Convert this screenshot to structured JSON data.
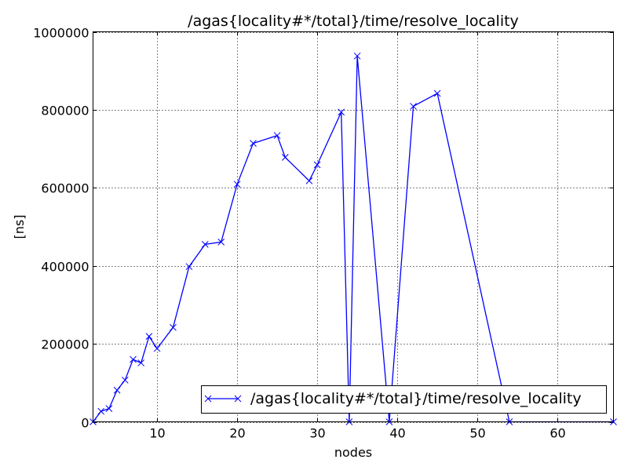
{
  "chart_data": {
    "type": "line",
    "title": "/agas{locality#*/total}/time/resolve_locality",
    "xlabel": "nodes",
    "ylabel": "[ns]",
    "xlim": [
      2,
      67
    ],
    "ylim": [
      0,
      1000000
    ],
    "x_ticks": [
      10,
      20,
      30,
      40,
      50,
      60
    ],
    "y_ticks": [
      0,
      200000,
      400000,
      600000,
      800000,
      1000000
    ],
    "grid": true,
    "legend_position": "lower-right",
    "series": [
      {
        "name": "/agas{locality#*/total}/time/resolve_locality",
        "color": "#0000ff",
        "marker": "x",
        "x": [
          2,
          3,
          4,
          5,
          6,
          7,
          8,
          9,
          10,
          12,
          14,
          16,
          18,
          20,
          22,
          25,
          26,
          29,
          30,
          33,
          34,
          35,
          39,
          42,
          45,
          54,
          67
        ],
        "y": [
          0,
          27000,
          34000,
          81000,
          107000,
          160000,
          151000,
          219000,
          188000,
          242000,
          398000,
          455000,
          461000,
          609000,
          714000,
          734000,
          678000,
          618000,
          659000,
          794000,
          0,
          938000,
          0,
          809000,
          842000,
          0,
          0
        ]
      }
    ]
  }
}
